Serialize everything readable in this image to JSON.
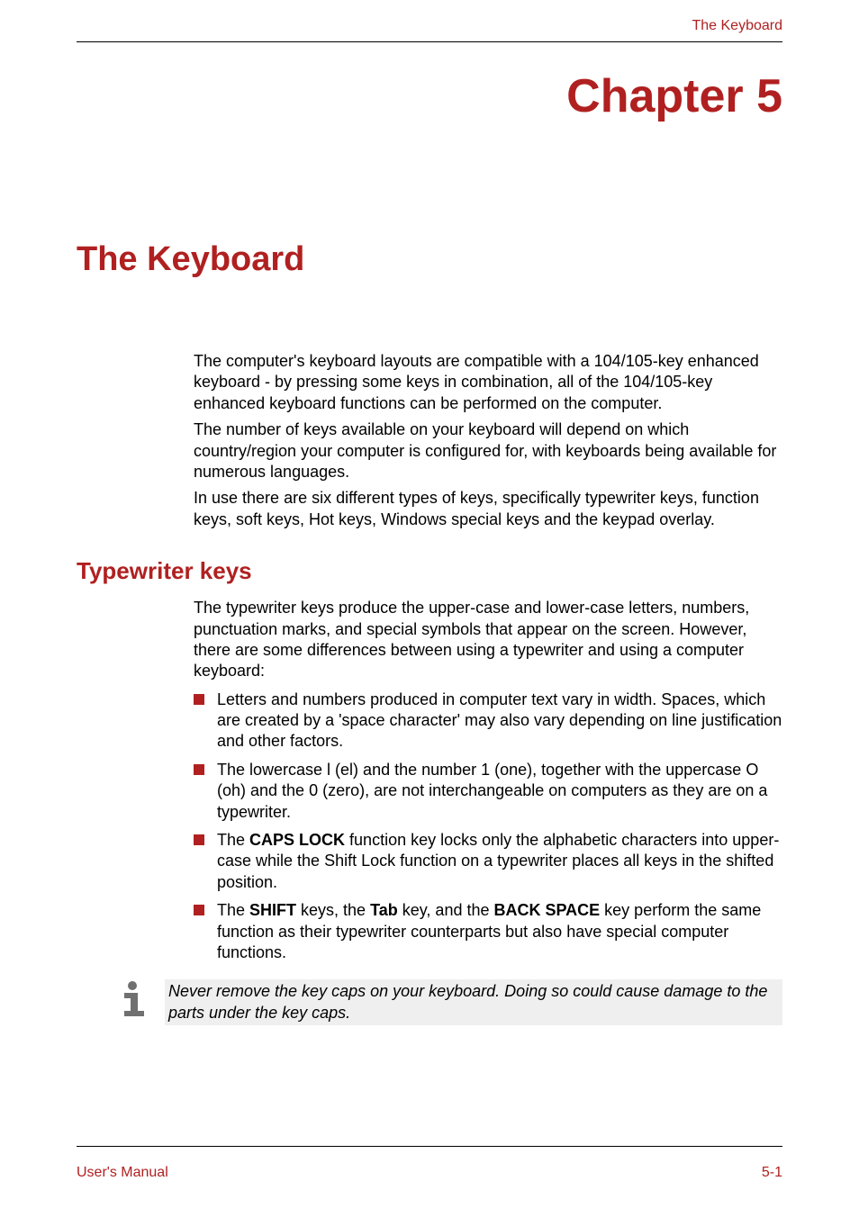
{
  "header": {
    "running_title": "The Keyboard"
  },
  "chapter": {
    "label": "Chapter 5"
  },
  "main_title": "The Keyboard",
  "intro_paragraphs": [
    "The computer's keyboard layouts are compatible with a 104/105-key enhanced keyboard - by pressing some keys in combination, all of the 104/105-key enhanced keyboard functions can be performed on the computer.",
    "The number of keys available on your keyboard will depend on which country/region your computer is configured for, with keyboards being available for numerous languages.",
    "In use there are six different types of keys, specifically typewriter keys, function keys, soft keys, Hot keys, Windows special keys and the keypad overlay."
  ],
  "section": {
    "title": "Typewriter keys",
    "intro": "The typewriter keys produce the upper-case and lower-case letters, numbers, punctuation marks, and special symbols that appear on the screen. However, there are some differences between using a typewriter and using a computer keyboard:",
    "bullets": [
      {
        "html": "Letters and numbers produced in computer text vary in width. Spaces, which are created by a 'space character' may also vary depending on line justification and other factors."
      },
      {
        "html": "The lowercase l (el) and the number 1 (one), together with the uppercase O (oh) and the 0 (zero), are not interchangeable on computers as they are on a typewriter."
      },
      {
        "html": "The <span class=\"bold\">CAPS LOCK</span> function key locks only the alphabetic characters into upper-case while the Shift Lock function on a typewriter places all keys in the shifted position."
      },
      {
        "html": "The <span class=\"bold\">SHIFT</span> keys, the <span class=\"bold\">Tab</span> key, and the <span class=\"bold\">BACK SPACE</span> key perform the same function as their typewriter counterparts but also have special computer functions."
      }
    ]
  },
  "info_note": "Never remove the key caps on your keyboard. Doing so could cause damage to the parts under the key caps.",
  "footer": {
    "left": "User's Manual",
    "right": "5-1"
  },
  "colors": {
    "accent": "#b02020",
    "text": "#000000",
    "info_bg": "#efefef",
    "background": "#ffffff",
    "rule": "#000000"
  },
  "typography": {
    "chapter_title_size": 52,
    "main_title_size": 38,
    "section_title_size": 26,
    "body_size": 18,
    "header_footer_size": 16
  }
}
